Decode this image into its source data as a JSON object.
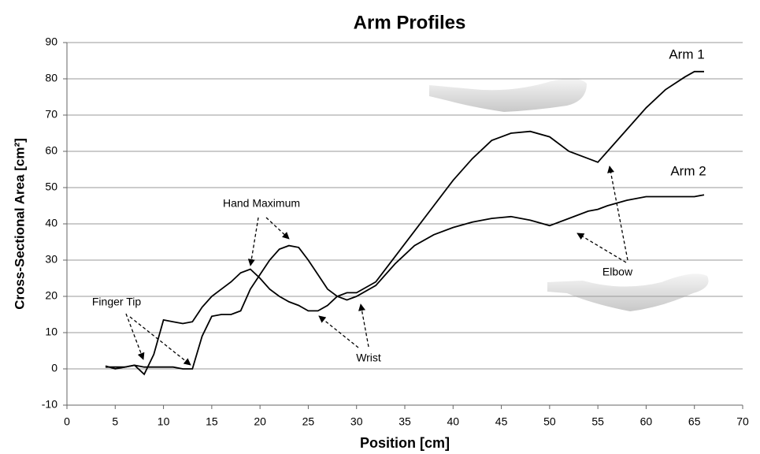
{
  "chart_data": {
    "type": "line",
    "title": "Arm Profiles",
    "x_label": "Position [cm]",
    "y_label": "Cross-Sectional Area [cm²]",
    "x": [
      4,
      5,
      6,
      7,
      8,
      9,
      10,
      11,
      12,
      13,
      14,
      15,
      16,
      17,
      18,
      19,
      20,
      21,
      22,
      23,
      24,
      25,
      26,
      27,
      28,
      29,
      30,
      32,
      34,
      36,
      38,
      40,
      42,
      44,
      46,
      48,
      50,
      52,
      54,
      55,
      56,
      58,
      60,
      62,
      64,
      65,
      66
    ],
    "series": [
      {
        "name": "Arm 1",
        "color": "#000000",
        "values": [
          0.8,
          0,
          0.5,
          1,
          -1.5,
          4,
          13.5,
          13,
          12.5,
          13,
          17,
          20,
          22,
          24,
          26.5,
          27.5,
          25,
          22,
          20,
          18.5,
          17.5,
          16,
          16,
          17.5,
          20,
          21,
          21,
          24,
          31,
          38,
          45,
          52,
          58,
          63,
          65,
          65.5,
          64,
          60,
          58,
          57,
          60,
          66,
          72,
          77,
          80.5,
          82,
          82
        ]
      },
      {
        "name": "Arm 2",
        "color": "#000000",
        "values": [
          0.5,
          0.5,
          0.5,
          1,
          0.5,
          0.5,
          0.5,
          0.5,
          0,
          0,
          9,
          14.5,
          15,
          15,
          16,
          22,
          26,
          30,
          33,
          34,
          33.5,
          30,
          26,
          22,
          20,
          19,
          20,
          23,
          29,
          34,
          37,
          39,
          40.5,
          41.5,
          42,
          41,
          39.5,
          41.5,
          43.5,
          44,
          45,
          46.5,
          47.5,
          47.5,
          47.5,
          47.5,
          48
        ]
      }
    ],
    "annotations": [
      "Hand Maximum",
      "Finger Tip",
      "Wrist",
      "Elbow"
    ],
    "xlim": [
      0,
      70
    ],
    "xticks": [
      0,
      5,
      10,
      15,
      20,
      25,
      30,
      35,
      40,
      45,
      50,
      55,
      60,
      65,
      70
    ],
    "ylim": [
      -10,
      90
    ],
    "yticks": [
      -10,
      0,
      10,
      20,
      30,
      40,
      50,
      60,
      70,
      80,
      90
    ],
    "grid": true
  }
}
